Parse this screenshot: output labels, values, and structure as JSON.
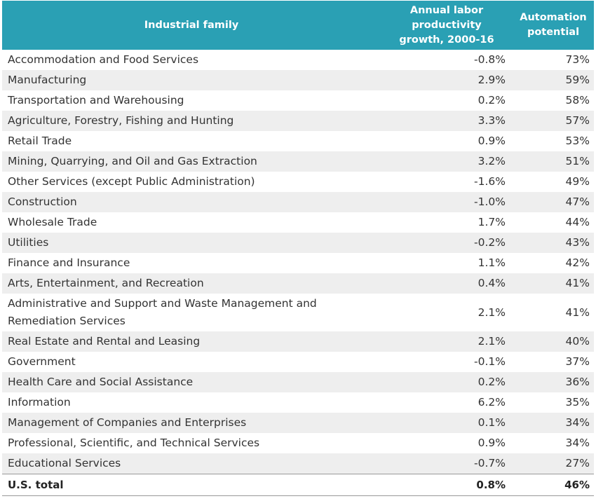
{
  "chart_data": {
    "type": "table",
    "columns": [
      "Industrial family",
      "Annual labor productivity growth, 2000-16",
      "Automation potential"
    ],
    "header_lines": {
      "col1": [
        "Industrial family"
      ],
      "col2": [
        "Annual labor",
        "productivity",
        "growth, 2000-16"
      ],
      "col3": [
        "Automation",
        "potential"
      ]
    },
    "rows": [
      {
        "industry": "Accommodation and Food Services",
        "growth": "-0.8%",
        "automation": "73%"
      },
      {
        "industry": "Manufacturing",
        "growth": "2.9%",
        "automation": "59%"
      },
      {
        "industry": "Transportation and Warehousing",
        "growth": "0.2%",
        "automation": "58%"
      },
      {
        "industry": "Agriculture, Forestry, Fishing and Hunting",
        "growth": "3.3%",
        "automation": "57%"
      },
      {
        "industry": "Retail Trade",
        "growth": "0.9%",
        "automation": "53%"
      },
      {
        "industry": "Mining, Quarrying, and Oil and Gas Extraction",
        "growth": "3.2%",
        "automation": "51%"
      },
      {
        "industry": "Other Services (except Public Administration)",
        "growth": "-1.6%",
        "automation": "49%"
      },
      {
        "industry": "Construction",
        "growth": "-1.0%",
        "automation": "47%"
      },
      {
        "industry": "Wholesale Trade",
        "growth": "1.7%",
        "automation": "44%"
      },
      {
        "industry": "Utilities",
        "growth": "-0.2%",
        "automation": "43%"
      },
      {
        "industry": "Finance and Insurance",
        "growth": "1.1%",
        "automation": "42%"
      },
      {
        "industry": "Arts, Entertainment, and Recreation",
        "growth": "0.4%",
        "automation": "41%"
      },
      {
        "industry": "Administrative and Support and Waste Management and Remediation Services",
        "growth": "2.1%",
        "automation": "41%"
      },
      {
        "industry": "Real Estate and Rental and Leasing",
        "growth": "2.1%",
        "automation": "40%"
      },
      {
        "industry": "Government",
        "growth": "-0.1%",
        "automation": "37%"
      },
      {
        "industry": "Health Care and Social Assistance",
        "growth": "0.2%",
        "automation": "36%"
      },
      {
        "industry": "Information",
        "growth": "6.2%",
        "automation": "35%"
      },
      {
        "industry": "Management of Companies and Enterprises",
        "growth": "0.1%",
        "automation": "34%"
      },
      {
        "industry": "Professional, Scientific, and Technical Services",
        "growth": "0.9%",
        "automation": "34%"
      },
      {
        "industry": "Educational Services",
        "growth": "-0.7%",
        "automation": "27%"
      }
    ],
    "total": {
      "industry": "U.S. total",
      "growth": "0.8%",
      "automation": "46%"
    }
  },
  "colors": {
    "header_bg": "#2aa0b4",
    "header_text": "#ffffff",
    "stripe": "#eeeeee"
  }
}
